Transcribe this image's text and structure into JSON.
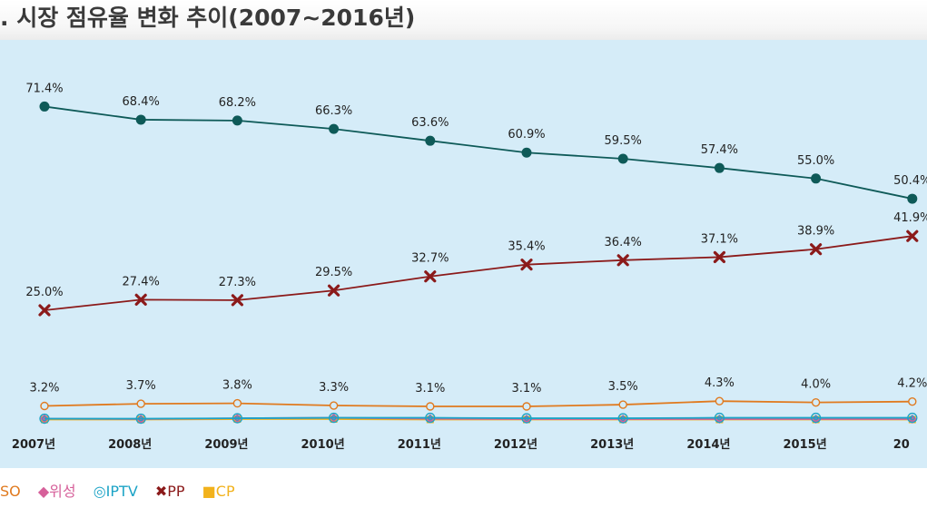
{
  "chart_data": {
    "type": "line",
    "title": ". 시장 점유율 변화 추이(2007~2016년)",
    "categories": [
      "2007년",
      "2008년",
      "2009년",
      "2010년",
      "2011년",
      "2012년",
      "2013년",
      "2014년",
      "2015년",
      "20"
    ],
    "ylim": [
      0,
      75
    ],
    "grid": false,
    "legend_position": "bottom-left",
    "series": [
      {
        "name": "SO",
        "color": "#e07a1f",
        "marker": "open-circle",
        "values": [
          3.2,
          3.7,
          3.8,
          3.3,
          3.1,
          3.1,
          3.5,
          4.3,
          4.0,
          4.2
        ],
        "labels": [
          "3.2%",
          "3.7%",
          "3.8%",
          "3.3%",
          "3.1%",
          "3.1%",
          "3.5%",
          "4.3%",
          "4.0%",
          "4.2%"
        ]
      },
      {
        "name": "위성",
        "color": "#d6609a",
        "marker": "diamond",
        "values": [
          0.3,
          0.2,
          0.4,
          0.5,
          0.3,
          0.2,
          0.2,
          0.2,
          0.2,
          0.2
        ]
      },
      {
        "name": "IPTV",
        "color": "#1ba3c6",
        "marker": "double-circle",
        "values": [
          0.3,
          0.3,
          0.4,
          0.5,
          0.5,
          0.4,
          0.4,
          0.5,
          0.5,
          0.5
        ]
      },
      {
        "name": "PP",
        "color": "#8b1a1a",
        "marker": "x",
        "values": [
          25.0,
          27.4,
          27.3,
          29.5,
          32.7,
          35.4,
          36.4,
          37.1,
          38.9,
          41.9
        ],
        "labels": [
          "25.0%",
          "27.4%",
          "27.3%",
          "29.5%",
          "32.7%",
          "35.4%",
          "36.4%",
          "37.1%",
          "38.9%",
          "41.9%"
        ]
      },
      {
        "name": "CP",
        "color": "#f2b21c",
        "marker": "square",
        "values": [
          0.1,
          0.1,
          0.2,
          0.2,
          0.1,
          0.1,
          0.1,
          0.1,
          0.1,
          0.1
        ]
      },
      {
        "name": "",
        "color": "#0e5a58",
        "marker": "filled-circle",
        "values": [
          71.4,
          68.4,
          68.2,
          66.3,
          63.6,
          60.9,
          59.5,
          57.4,
          55.0,
          50.4
        ],
        "labels": [
          "71.4%",
          "68.4%",
          "68.2%",
          "66.3%",
          "63.6%",
          "60.9%",
          "59.5%",
          "57.4%",
          "55.0%",
          "50.4%"
        ]
      }
    ]
  },
  "legend": [
    {
      "glyph": "",
      "text": "SO",
      "color": "#e07a1f"
    },
    {
      "glyph": "◆",
      "text": "위성",
      "color": "#d6609a"
    },
    {
      "glyph": "◎",
      "text": "IPTV",
      "color": "#1ba3c6"
    },
    {
      "glyph": "✖",
      "text": "PP",
      "color": "#8b1a1a"
    },
    {
      "glyph": "■",
      "text": "CP",
      "color": "#f2b21c"
    }
  ]
}
